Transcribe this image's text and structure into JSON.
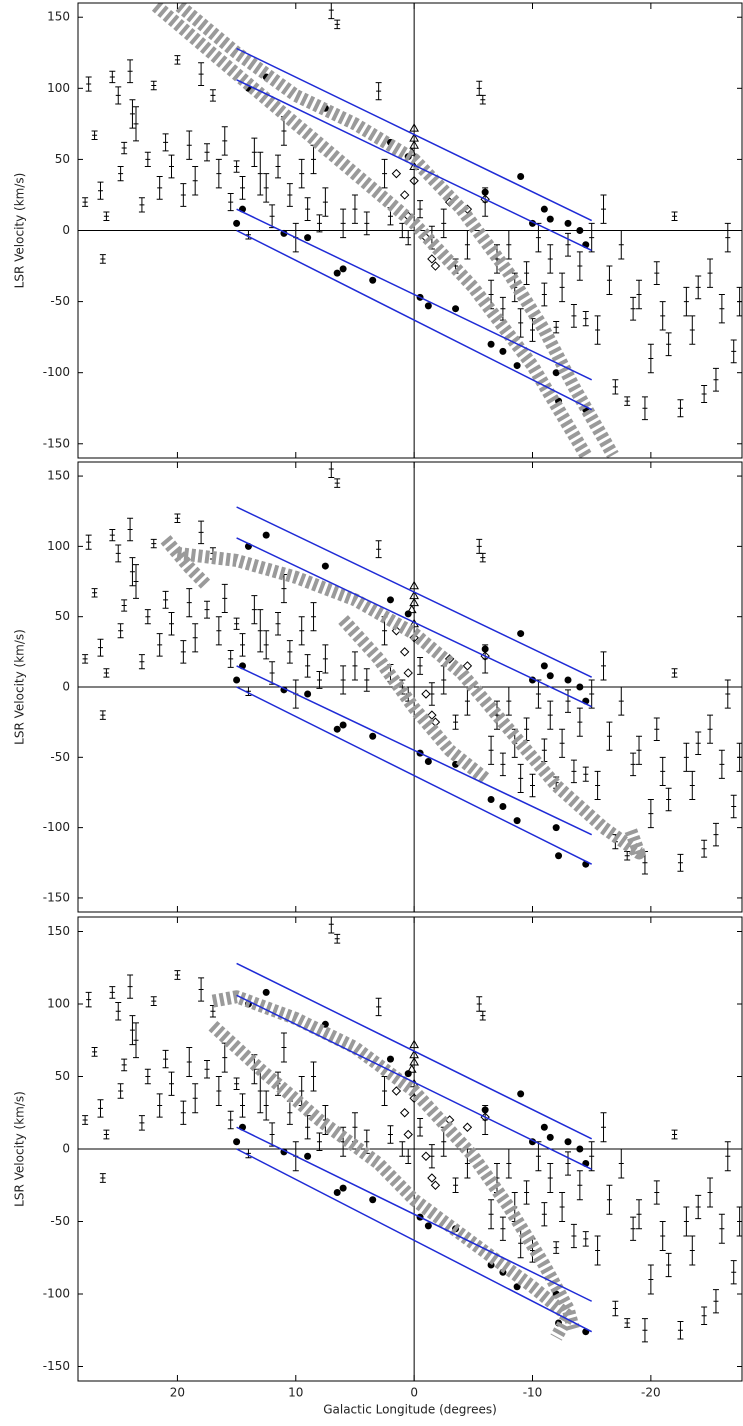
{
  "chart_data": {
    "type": "scatter",
    "x_label": "Galactic Longitude (degrees)",
    "y_label": "LSR Velocity  (km/s)",
    "xlim": [
      28.4,
      -27.7
    ],
    "ylim": [
      -160,
      160
    ],
    "xticks": [
      20,
      10,
      0,
      -10,
      -20
    ],
    "yticks": [
      -150,
      -100,
      -50,
      0,
      50,
      100,
      150
    ],
    "zero_lines": true,
    "point_color": "#000000",
    "series": [
      {
        "marker": "errorbar",
        "x": [
          27.8,
          27.5,
          27,
          26.5,
          26,
          26.3,
          25.5,
          25,
          24.8,
          24.5,
          24,
          23.8,
          23.5,
          23,
          22.5,
          22,
          21.5,
          21,
          20.5,
          20,
          19.5,
          19,
          18.5,
          18,
          17.5,
          17,
          16.5,
          16,
          15.5,
          15,
          14.5,
          14,
          13.5,
          13,
          12.5,
          12,
          11.5,
          11,
          10.5,
          10,
          9.5,
          9,
          8.5,
          8,
          7.5,
          7,
          6.5,
          6,
          5,
          4,
          3,
          2.5,
          2,
          1,
          0.5,
          -0.5,
          -1.5,
          -2.5,
          -3.5,
          -4.5,
          -5.5,
          -5.8,
          -6,
          -6.5,
          -7,
          -7.5,
          -8,
          -8.5,
          -9,
          -9.5,
          -10,
          -10.5,
          -11,
          -11.5,
          -12,
          -12.5,
          -13,
          -13.5,
          -14,
          -14.5,
          -15,
          -15.5,
          -16,
          -16.5,
          -17,
          -17.5,
          -18,
          -18.5,
          -19,
          -19.5,
          -20,
          -20.5,
          -21,
          -21.5,
          -22,
          -22.5,
          -23,
          -23.5,
          -24,
          -24.5,
          -25,
          -25.5,
          -26,
          -26.5,
          -27,
          -27.5
        ],
        "values": [
          20,
          103,
          67,
          28,
          10,
          -20,
          108,
          95,
          40,
          58,
          112,
          82,
          75,
          18,
          50,
          102,
          30,
          62,
          45,
          120,
          25,
          60,
          35,
          110,
          55,
          95,
          40,
          63,
          20,
          45,
          30,
          -3,
          55,
          40,
          30,
          10,
          45,
          70,
          25,
          -5,
          40,
          15,
          50,
          5,
          20,
          155,
          145,
          5,
          15,
          5,
          98,
          40,
          10,
          0,
          -5,
          15,
          -5,
          5,
          -25,
          -10,
          100,
          92,
          20,
          -45,
          -20,
          -55,
          -10,
          -40,
          -65,
          -30,
          -70,
          -5,
          -45,
          -20,
          -68,
          -40,
          -10,
          -60,
          -25,
          -62,
          -5,
          -70,
          15,
          -35,
          -110,
          -10,
          -120,
          -55,
          -45,
          -125,
          -90,
          -30,
          -60,
          -80,
          10,
          -125,
          -50,
          -70,
          -40,
          -115,
          -30,
          -105,
          -55,
          -5,
          -85,
          -50
        ],
        "errors": [
          3,
          5,
          3,
          6,
          3,
          3,
          4,
          6,
          5,
          4,
          8,
          10,
          12,
          5,
          5,
          3,
          8,
          6,
          8,
          3,
          8,
          10,
          10,
          8,
          6,
          4,
          10,
          10,
          6,
          4,
          8,
          3,
          10,
          15,
          10,
          8,
          8,
          10,
          8,
          10,
          10,
          8,
          10,
          6,
          10,
          6,
          3,
          10,
          10,
          8,
          6,
          10,
          6,
          5,
          5,
          6,
          8,
          10,
          5,
          10,
          5,
          3,
          10,
          10,
          10,
          8,
          10,
          10,
          10,
          8,
          8,
          10,
          8,
          10,
          4,
          10,
          8,
          8,
          10,
          5,
          10,
          10,
          10,
          10,
          5,
          10,
          3,
          8,
          10,
          8,
          10,
          8,
          10,
          8,
          3,
          6,
          10,
          10,
          8,
          6,
          10,
          8,
          10,
          10,
          8,
          10
        ]
      },
      {
        "marker": "circle",
        "x": [
          14,
          12.5,
          7.5,
          2,
          0.5,
          -6,
          -9,
          -10,
          -11,
          -11.5,
          -13,
          -14,
          -14.5,
          15,
          14.5,
          11,
          9,
          6.5,
          6,
          3.5,
          -0.5,
          -1.2,
          -3.5,
          -6.5,
          -7.5,
          -8.7,
          -12,
          -12.2,
          -14.5
        ],
        "values": [
          100,
          108,
          86,
          62,
          52,
          27,
          38,
          5,
          15,
          8,
          5,
          0,
          -10,
          5,
          15,
          -2,
          -5,
          -30,
          -27,
          -35,
          -47,
          -53,
          -55,
          -80,
          -85,
          -95,
          -100,
          -120,
          -126
        ]
      },
      {
        "marker": "diamond",
        "x": [
          1.5,
          0.8,
          0.5,
          -1,
          -1.5,
          -1.8,
          -3,
          -4.5,
          -6,
          0
        ],
        "values": [
          40,
          25,
          10,
          -5,
          -20,
          -25,
          20,
          15,
          22,
          35
        ]
      },
      {
        "marker": "triangle",
        "x": [
          0,
          0,
          0,
          0.2,
          0
        ],
        "values": [
          72,
          65,
          60,
          55,
          45
        ]
      }
    ],
    "line_color": "#1f2bd6",
    "model_lines": [
      {
        "x": [
          15,
          -15
        ],
        "values": [
          128,
          7
        ]
      },
      {
        "x": [
          15,
          -15
        ],
        "values": [
          106,
          -14
        ]
      },
      {
        "x": [
          15,
          -15
        ],
        "values": [
          15,
          -105
        ]
      },
      {
        "x": [
          15,
          -15
        ],
        "values": [
          0,
          -126
        ]
      }
    ],
    "curve_color": "#9a9a9a",
    "panels": [
      {
        "curves": [
          {
            "x": [
              21.8,
              15,
              10,
              5,
              0,
              -5,
              -10,
              -14.5
            ],
            "values": [
              158,
              110,
              75,
              40,
              5,
              -40,
              -95,
              -158
            ]
          },
          {
            "x": [
              19.8,
              15,
              10,
              5,
              0,
              -4,
              -8,
              -11,
              -13.5,
              -16.8
            ],
            "values": [
              158,
              125,
              95,
              75,
              50,
              15,
              -30,
              -70,
              -110,
              -158
            ]
          }
        ]
      },
      {
        "curves": [
          {
            "x": [
              21,
              19,
              17.5
            ],
            "values": [
              105,
              85,
              72
            ]
          },
          {
            "x": [
              20,
              15,
              10,
              5,
              0,
              -4,
              -8,
              -12,
              -16,
              -19,
              -18.3
            ],
            "values": [
              95,
              90,
              78,
              62,
              38,
              10,
              -30,
              -70,
              -100,
              -118,
              -102
            ]
          },
          {
            "x": [
              6,
              3,
              0,
              -3,
              -6
            ],
            "values": [
              48,
              20,
              -15,
              -45,
              -65
            ]
          }
        ]
      },
      {
        "curves": [
          {
            "x": [
              17,
              15,
              10,
              5,
              0,
              -5,
              -8,
              -11,
              -13,
              -13.5
            ],
            "values": [
              102,
              105,
              90,
              70,
              40,
              -5,
              -40,
              -80,
              -110,
              -125
            ]
          },
          {
            "x": [
              17,
              13,
              8,
              3,
              0,
              -5,
              -10,
              -13,
              -12
            ],
            "values": [
              85,
              55,
              20,
              -10,
              -35,
              -65,
              -95,
              -115,
              -130
            ]
          }
        ]
      }
    ]
  }
}
